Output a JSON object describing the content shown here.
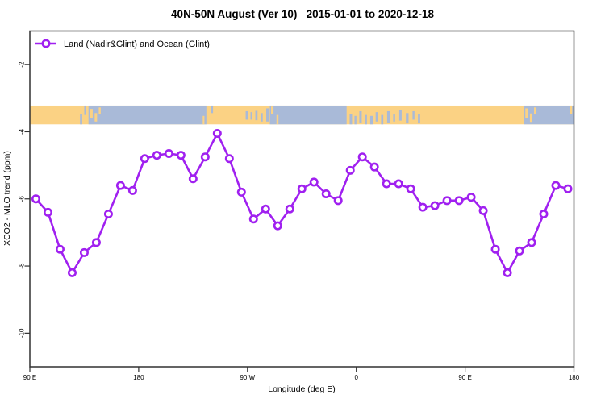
{
  "title": "40N-50N August (Ver 10)   2015-01-01 to 2020-12-18",
  "legend": {
    "label": "Land (Nadir&Glint) and Ocean (Glint)"
  },
  "colors": {
    "series": "#A020F0",
    "marker_fill": "#ffffff",
    "map_land": "#FBD284",
    "map_ocean": "#A9BAD8",
    "frame": "#303030",
    "text": "#000000"
  },
  "chart_data": {
    "type": "line",
    "title": "40N-50N August (Ver 10)   2015-01-01 to 2020-12-18",
    "xlabel": "Longitude (deg E)",
    "ylabel": "XCO2 - MLO trend (ppm)",
    "xlim": [
      90,
      540
    ],
    "ylim": [
      -11,
      -1
    ],
    "grid": false,
    "legend_position": "top-left-inside",
    "x_ticks": [
      {
        "pos": 90,
        "label": "90 E"
      },
      {
        "pos": 180,
        "label": "180"
      },
      {
        "pos": 270,
        "label": "90 W"
      },
      {
        "pos": 360,
        "label": "0"
      },
      {
        "pos": 450,
        "label": "90 E"
      },
      {
        "pos": 540,
        "label": "180"
      }
    ],
    "y_ticks": [
      {
        "pos": -2,
        "label": "-2"
      },
      {
        "pos": -4,
        "label": "-4"
      },
      {
        "pos": -6,
        "label": "-6"
      },
      {
        "pos": -8,
        "label": "-8"
      },
      {
        "pos": -10,
        "label": "-10"
      }
    ],
    "series": [
      {
        "name": "Land (Nadir&Glint) and Ocean (Glint)",
        "marker": "open-circle",
        "x": [
          95,
          105,
          115,
          125,
          135,
          145,
          155,
          165,
          175,
          185,
          195,
          205,
          215,
          225,
          235,
          245,
          255,
          265,
          275,
          285,
          295,
          305,
          315,
          325,
          335,
          345,
          355,
          365,
          375,
          385,
          395,
          405,
          415,
          425,
          435,
          445,
          455,
          465,
          475,
          485,
          495,
          505,
          515,
          525,
          535
        ],
        "y": [
          -6.0,
          -6.4,
          -7.5,
          -8.2,
          -7.6,
          -7.3,
          -6.45,
          -5.6,
          -5.75,
          -4.8,
          -4.7,
          -4.65,
          -4.7,
          -5.4,
          -4.75,
          -4.05,
          -4.8,
          -5.8,
          -6.6,
          -6.3,
          -6.8,
          -6.3,
          -5.7,
          -5.5,
          -5.85,
          -6.05,
          -5.15,
          -4.75,
          -5.05,
          -5.55,
          -5.55,
          -5.7,
          -6.25,
          -6.2,
          -6.05,
          -6.05,
          -5.95,
          -6.35,
          -7.5,
          -8.2,
          -7.55,
          -7.3,
          -6.45,
          -5.6,
          -5.7
        ]
      }
    ],
    "map_band": {
      "description": "world coastline strip 40N-50N, land vs ocean",
      "band_y": [
        -3.22,
        -3.78
      ],
      "ocean_segments": [
        {
          "from": 138.5,
          "to": 236.0
        },
        {
          "from": 288.5,
          "to": 352.0
        },
        {
          "from": 498.8,
          "to": 540.0
        }
      ],
      "islands": [
        {
          "lon": 139.8,
          "w": 2.2,
          "t": 0.18,
          "h": 0.5
        },
        {
          "lon": 143.6,
          "w": 2.0,
          "t": 0.4,
          "h": 0.45
        },
        {
          "lon": 147.0,
          "w": 1.6,
          "t": 0.1,
          "h": 0.35
        },
        {
          "lon": 233.0,
          "w": 1.4,
          "t": 0.55,
          "h": 0.45
        },
        {
          "lon": 289.5,
          "w": 2.0,
          "t": 0.05,
          "h": 0.4
        },
        {
          "lon": 294.0,
          "w": 1.6,
          "t": 0.5,
          "h": 0.5
        },
        {
          "lon": 499.8,
          "w": 2.2,
          "t": 0.15,
          "h": 0.5
        },
        {
          "lon": 503.6,
          "w": 2.0,
          "t": 0.42,
          "h": 0.45
        },
        {
          "lon": 507.0,
          "w": 1.6,
          "t": 0.1,
          "h": 0.35
        },
        {
          "lon": 536.5,
          "w": 2.0,
          "t": 0.0,
          "h": 0.45
        }
      ],
      "lakes": [
        {
          "lon": 131.5,
          "w": 1.8,
          "t": 0.45,
          "h": 0.55
        },
        {
          "lon": 135.0,
          "w": 1.5,
          "t": 0.0,
          "h": 0.5
        },
        {
          "lon": 240.0,
          "w": 1.5,
          "t": 0.0,
          "h": 0.4
        },
        {
          "lon": 268.5,
          "w": 1.8,
          "t": 0.3,
          "h": 0.45
        },
        {
          "lon": 272.5,
          "w": 1.6,
          "t": 0.35,
          "h": 0.4
        },
        {
          "lon": 276.5,
          "w": 1.8,
          "t": 0.28,
          "h": 0.5
        },
        {
          "lon": 281.0,
          "w": 1.6,
          "t": 0.4,
          "h": 0.45
        },
        {
          "lon": 285.5,
          "w": 2.0,
          "t": 0.15,
          "h": 0.7
        },
        {
          "lon": 354.5,
          "w": 2.0,
          "t": 0.45,
          "h": 0.55
        },
        {
          "lon": 358.5,
          "w": 1.6,
          "t": 0.55,
          "h": 0.45
        },
        {
          "lon": 362.5,
          "w": 2.0,
          "t": 0.3,
          "h": 0.6
        },
        {
          "lon": 367.0,
          "w": 1.8,
          "t": 0.5,
          "h": 0.5
        },
        {
          "lon": 371.5,
          "w": 2.2,
          "t": 0.55,
          "h": 0.45
        },
        {
          "lon": 376.0,
          "w": 1.6,
          "t": 0.35,
          "h": 0.5
        },
        {
          "lon": 380.5,
          "w": 1.8,
          "t": 0.5,
          "h": 0.5
        },
        {
          "lon": 385.5,
          "w": 2.6,
          "t": 0.3,
          "h": 0.6
        },
        {
          "lon": 390.5,
          "w": 1.6,
          "t": 0.45,
          "h": 0.4
        },
        {
          "lon": 395.5,
          "w": 2.0,
          "t": 0.25,
          "h": 0.55
        },
        {
          "lon": 401.0,
          "w": 2.2,
          "t": 0.4,
          "h": 0.55
        },
        {
          "lon": 406.5,
          "w": 1.6,
          "t": 0.3,
          "h": 0.45
        },
        {
          "lon": 411.0,
          "w": 1.8,
          "t": 0.45,
          "h": 0.5
        }
      ]
    }
  }
}
